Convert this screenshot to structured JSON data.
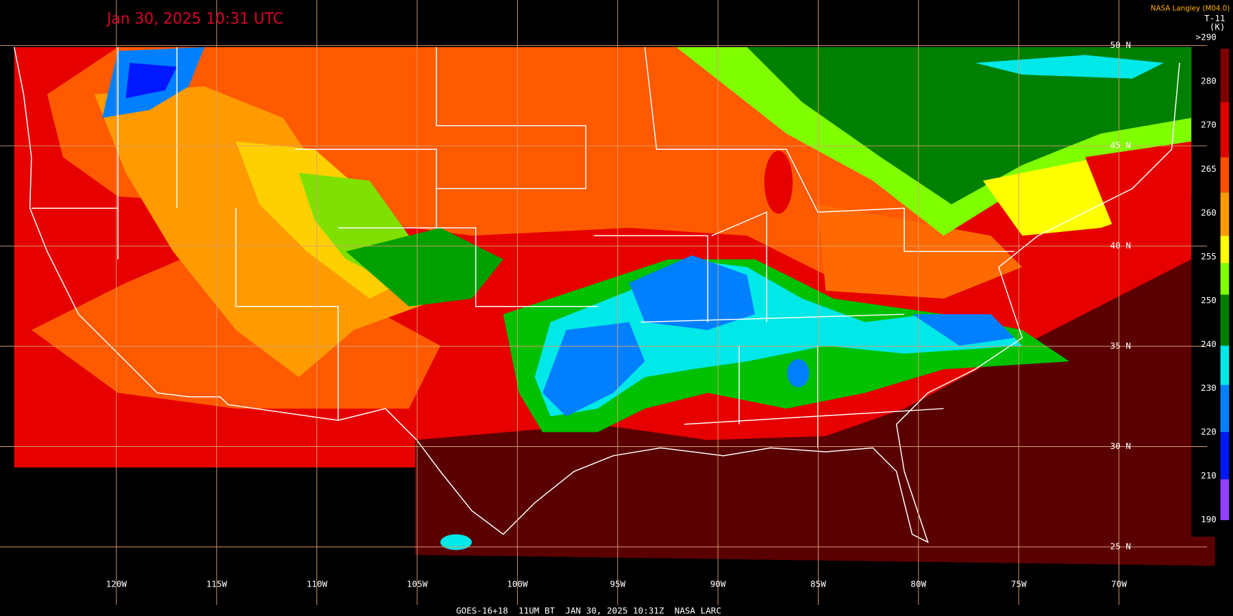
{
  "header": {
    "timestamp": "Jan 30, 2025 10:31 UTC",
    "credit": "NASA Langley (M04.0)",
    "product": "T-11",
    "unit": "(K)"
  },
  "colorbar": {
    "labels": [
      ">290",
      "280",
      "270",
      "265",
      "260",
      "255",
      "250",
      "240",
      "230",
      "220",
      "210",
      "190"
    ]
  },
  "grid": {
    "longitudes": [
      "120W",
      "115W",
      "110W",
      "105W",
      "100W",
      "95W",
      "90W",
      "85W",
      "80W",
      "75W",
      "70W"
    ],
    "latitudes": [
      "50 N",
      "45 N",
      "40 N",
      "35 N",
      "30 N",
      "25 N"
    ]
  },
  "footer": "GOES-16+18  11UM BT  JAN 30, 2025 10:31Z  NASA LARC"
}
